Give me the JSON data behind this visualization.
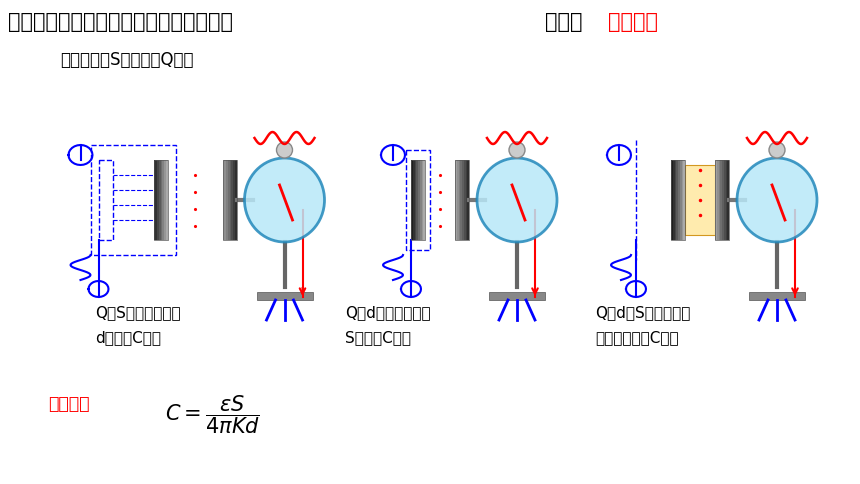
{
  "title": "平行板电容器的电容大小的决定因素探究",
  "method_label": "方法：",
  "method_value": "控制变量",
  "subtitle": "充电后断开S，电荷量Q恒定",
  "desc1_line1": "Q、S保持不变时，",
  "desc1_line2": "d越大，C越小",
  "desc2_line1": "Q、d保持不变时，",
  "desc2_line2": "S越大，C越大",
  "desc3_line1": "Q、d、S保持不变时",
  "desc3_line2": "，插入介质，C越大",
  "formula_label": "实验公式",
  "bg_color": "#FFFFFF",
  "title_color": "#000000",
  "method_label_color": "#000000",
  "method_value_color": "#FF0000",
  "subtitle_color": "#000000",
  "desc_color": "#000000",
  "formula_label_color": "#FF0000",
  "formula_color": "#000000"
}
